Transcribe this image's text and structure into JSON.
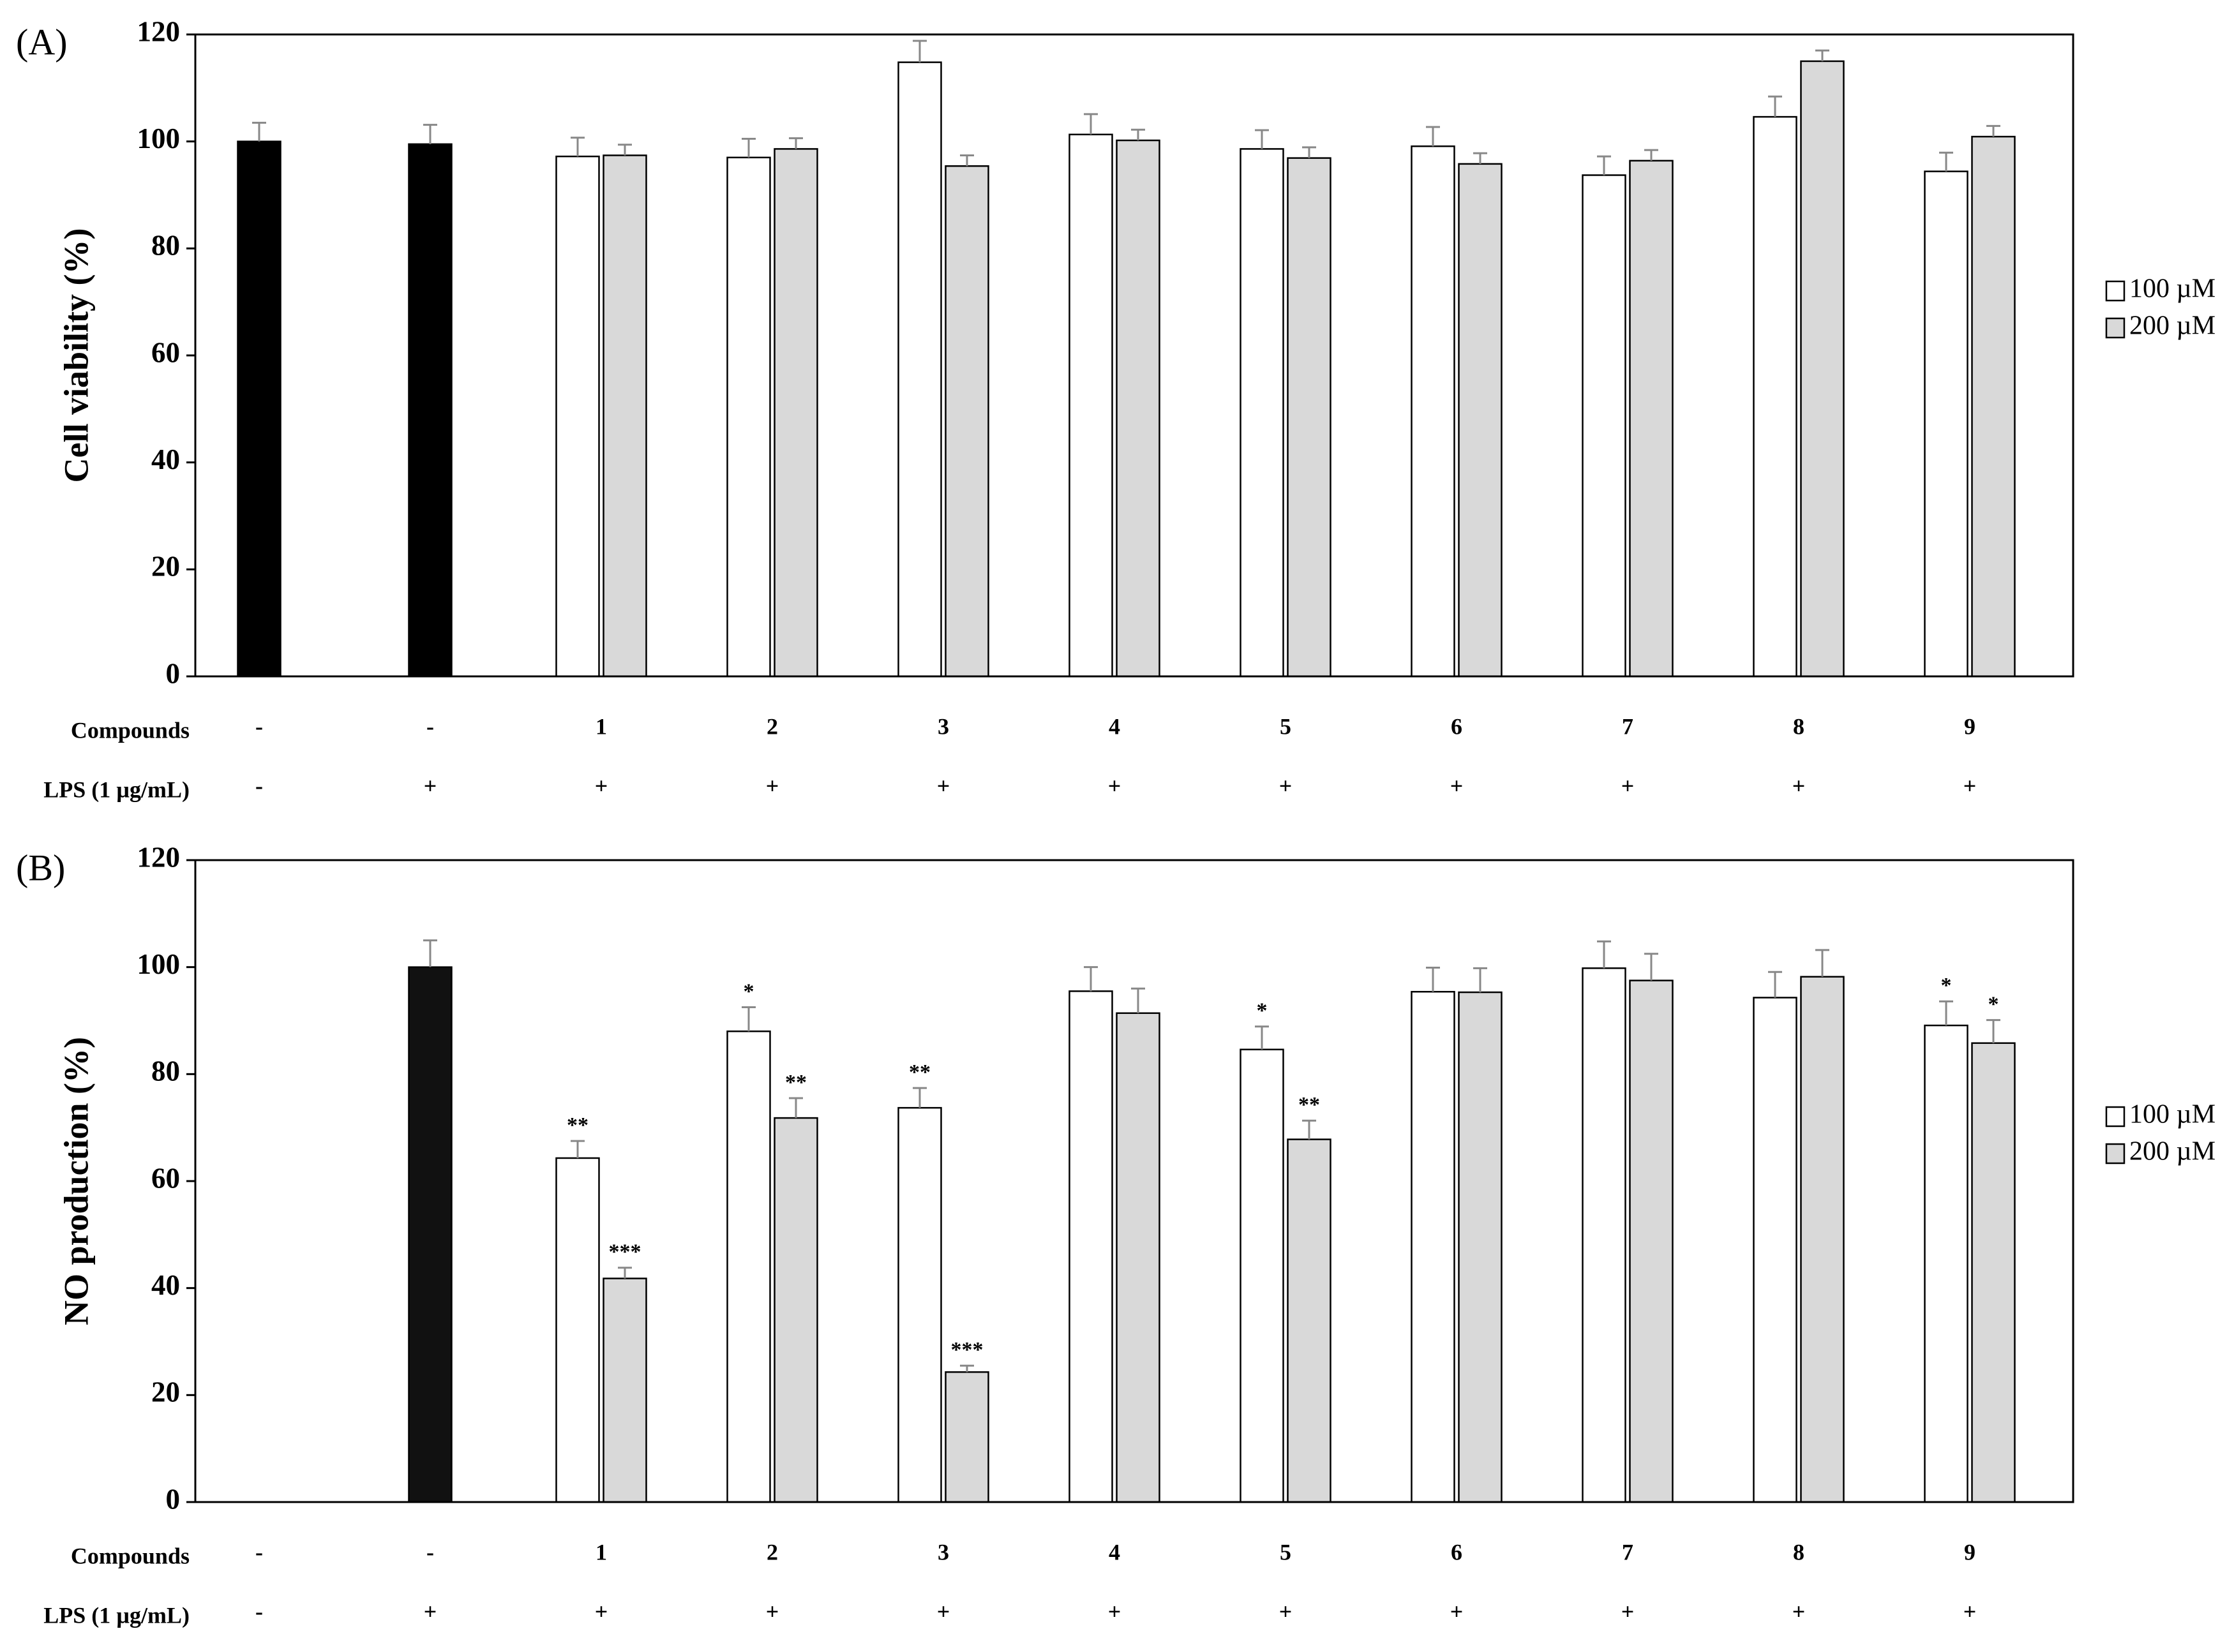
{
  "chart_data": [
    {
      "type": "bar",
      "panel_label": "(A)",
      "ylabel": "Cell viability (%)",
      "ylim": [
        0,
        120
      ],
      "yticks": [
        0,
        20,
        40,
        60,
        80,
        100,
        120
      ],
      "row_labels": [
        "Compounds",
        "LPS (1 µg/mL)"
      ],
      "compounds": [
        "-",
        "-",
        "1",
        "2",
        "3",
        "4",
        "5",
        "6",
        "7",
        "8",
        "9"
      ],
      "lps": [
        "-",
        "+",
        "+",
        "+",
        "+",
        "+",
        "+",
        "+",
        "+",
        "+",
        "+"
      ],
      "legend": "right",
      "series": [
        {
          "color": "#000000",
          "values": [
            100,
            99.5,
            null,
            null,
            null,
            null,
            null,
            null,
            null,
            null,
            null
          ],
          "errors": [
            3.5,
            3.6,
            null,
            null,
            null,
            null,
            null,
            null,
            null,
            null,
            null
          ]
        },
        {
          "name": "100 µM",
          "color": "#ffffff",
          "values": [
            null,
            null,
            97.2,
            97,
            114.8,
            101.3,
            98.6,
            99.1,
            93.7,
            104.6,
            94.4
          ],
          "errors": [
            null,
            null,
            3.5,
            3.5,
            4,
            3.8,
            3.5,
            3.6,
            3.5,
            3.8,
            3.5
          ]
        },
        {
          "name": "200 µM",
          "color": "#d9d9d9",
          "values": [
            null,
            null,
            97.4,
            98.6,
            95.4,
            100.2,
            96.9,
            95.8,
            96.4,
            115,
            100.9
          ],
          "errors": [
            null,
            null,
            2,
            2,
            2,
            2,
            2,
            2,
            2,
            2,
            2
          ]
        }
      ]
    },
    {
      "type": "bar",
      "panel_label": "(B)",
      "ylabel": "NO production (%)",
      "ylim": [
        0,
        120
      ],
      "yticks": [
        0,
        20,
        40,
        60,
        80,
        100,
        120
      ],
      "row_labels": [
        "Compounds",
        "LPS (1 µg/mL)"
      ],
      "compounds": [
        "-",
        "-",
        "1",
        "2",
        "3",
        "4",
        "5",
        "6",
        "7",
        "8",
        "9"
      ],
      "lps": [
        "-",
        "+",
        "+",
        "+",
        "+",
        "+",
        "+",
        "+",
        "+",
        "+",
        "+"
      ],
      "legend": "right",
      "series": [
        {
          "color": "#111111",
          "values": [
            0,
            100,
            null,
            null,
            null,
            null,
            null,
            null,
            null,
            null,
            null
          ],
          "errors": [
            null,
            5,
            null,
            null,
            null,
            null,
            null,
            null,
            null,
            null,
            null
          ]
        },
        {
          "name": "100 µM",
          "color": "#ffffff",
          "values": [
            null,
            null,
            64.3,
            88,
            73.7,
            95.5,
            84.6,
            95.4,
            99.8,
            94.3,
            89.1
          ],
          "errors": [
            null,
            null,
            3.2,
            4.5,
            3.7,
            4.5,
            4.3,
            4.5,
            5,
            4.8,
            4.5
          ],
          "annotations": [
            null,
            null,
            "**",
            "*",
            "**",
            null,
            "*",
            null,
            null,
            null,
            "*"
          ]
        },
        {
          "name": "200 µM",
          "color": "#d9d9d9",
          "values": [
            null,
            null,
            41.8,
            71.8,
            24.3,
            91.4,
            67.8,
            95.3,
            97.5,
            98.2,
            85.8
          ],
          "errors": [
            null,
            null,
            2,
            3.7,
            1.2,
            4.6,
            3.5,
            4.5,
            5,
            5,
            4.3
          ],
          "annotations": [
            null,
            null,
            "***",
            "**",
            "***",
            null,
            "**",
            null,
            null,
            null,
            "*"
          ]
        }
      ]
    }
  ]
}
